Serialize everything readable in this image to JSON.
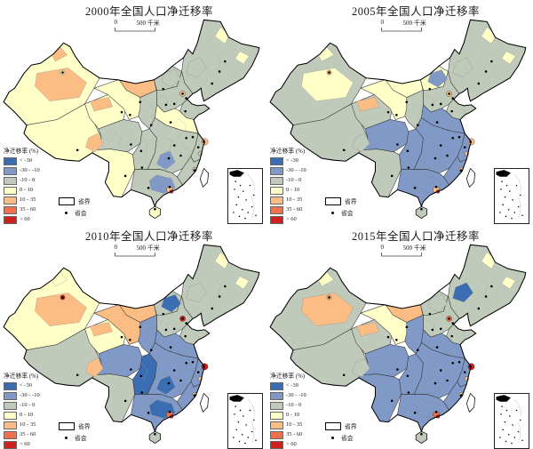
{
  "figure": {
    "background": "#ffffff"
  },
  "legend": {
    "title": "净迁移率 (%)",
    "classes": [
      {
        "label": "< -30",
        "color": "#3B6DB3"
      },
      {
        "label": "-30 - -10",
        "color": "#8099C7"
      },
      {
        "label": "-10 - 0",
        "color": "#C0CABB"
      },
      {
        "label": "0 - 10",
        "color": "#FFFFC8"
      },
      {
        "label": "10 - 35",
        "color": "#FBBD84"
      },
      {
        "label": "35 - 60",
        "color": "#F1714C"
      },
      {
        "label": "> 60",
        "color": "#D11E1F"
      }
    ],
    "province_boundary_label": "省界",
    "capital_label": "省会"
  },
  "scalebar": {
    "start": "0",
    "end": "500 千米"
  },
  "map_style": {
    "coast_color": "#000000",
    "province_line_color": "#3a3a3a",
    "prefecture_line_color": "#9aa0a0",
    "capital_dot_color": "#000000",
    "no_data_fill": "#ffffff"
  },
  "panels": [
    {
      "title": "2000年全国人口净迁移率",
      "regions": {
        "xinjiang": 3,
        "tibet": 3,
        "qinghai": 3,
        "gansu": 3,
        "nmg_west": 4,
        "nmg_mid": 2,
        "northeast": 2,
        "north_china": 2,
        "shandong": 2,
        "huanghuai": 3,
        "shaanxi": 2,
        "sichuan": 2,
        "cq_gz": 2,
        "yunnan": 3,
        "central": 2,
        "jiangnan": 2,
        "fujian": 2,
        "gdgx": 2,
        "xj_center": 4,
        "xj_north": 4,
        "tibet_east": 4,
        "qinghai_north": 4,
        "nmg_mid_patch": 2,
        "nmg_east_patch": 2,
        "ne_patch1": 3,
        "ne_patch2": 3,
        "hunan_patch": 1,
        "gd_blue": 1,
        "hainan": 3,
        "taiwan": -1,
        "beijing_spot": 4,
        "shanghai_spot": 4,
        "pearl_spot": 4,
        "pearl_red": 6,
        "urumqi_spot": 3,
        "fj_coast": 4,
        "zj_coast": 2
      }
    },
    {
      "title": "2005年全国人口净迁移率",
      "regions": {
        "xinjiang": 2,
        "tibet": 2,
        "qinghai": 2,
        "gansu": 3,
        "nmg_west": 3,
        "nmg_mid": 3,
        "northeast": 2,
        "north_china": 2,
        "shandong": 2,
        "huanghuai": 1,
        "shaanxi": 2,
        "sichuan": 1,
        "cq_gz": 1,
        "yunnan": 2,
        "central": 1,
        "jiangnan": 1,
        "fujian": 1,
        "gdgx": 1,
        "xj_center": 3,
        "xj_north": 3,
        "tibet_east": 2,
        "qinghai_north": 4,
        "nmg_mid_patch": 1,
        "nmg_east_patch": 2,
        "ne_patch1": 3,
        "ne_patch2": 3,
        "hunan_patch": 1,
        "gd_blue": 1,
        "hainan": 2,
        "taiwan": -1,
        "beijing_spot": 4,
        "shanghai_spot": 4,
        "pearl_spot": 4,
        "pearl_red": 6,
        "urumqi_spot": 4,
        "fj_coast": 4,
        "zj_coast": 4
      }
    },
    {
      "title": "2010年全国人口净迁移率",
      "regions": {
        "xinjiang": 3,
        "tibet": 2,
        "qinghai": 3,
        "gansu": 4,
        "nmg_west": 4,
        "nmg_mid": 2,
        "northeast": 2,
        "north_china": 2,
        "shandong": 2,
        "huanghuai": 1,
        "shaanxi": 1,
        "sichuan": 1,
        "cq_gz": 0,
        "yunnan": 2,
        "central": 1,
        "jiangnan": 1,
        "fujian": 1,
        "gdgx": 1,
        "xj_center": 4,
        "xj_north": 3,
        "tibet_east": 4,
        "qinghai_north": 4,
        "nmg_mid_patch": 0,
        "nmg_east_patch": 2,
        "ne_patch1": 3,
        "ne_patch2": 3,
        "hunan_patch": 0,
        "gd_blue": 0,
        "hainan": 2,
        "taiwan": -1,
        "beijing_spot": 6,
        "shanghai_spot": 6,
        "pearl_spot": 5,
        "pearl_red": 6,
        "urumqi_spot": 6,
        "fj_coast": 4,
        "zj_coast": 4
      }
    },
    {
      "title": "2015年全国人口净迁移率",
      "regions": {
        "xinjiang": 2,
        "tibet": 2,
        "qinghai": 2,
        "gansu": 3,
        "nmg_west": 4,
        "nmg_mid": 2,
        "northeast": 2,
        "north_china": 2,
        "shandong": 2,
        "huanghuai": 1,
        "shaanxi": 1,
        "sichuan": 1,
        "cq_gz": 1,
        "yunnan": 1,
        "central": 1,
        "jiangnan": 1,
        "fujian": 1,
        "gdgx": 1,
        "xj_center": 4,
        "xj_north": 3,
        "tibet_east": 2,
        "qinghai_north": 4,
        "nmg_mid_patch": 2,
        "nmg_east_patch": 0,
        "ne_patch1": 3,
        "ne_patch2": 3,
        "hunan_patch": 1,
        "gd_blue": 1,
        "hainan": 2,
        "taiwan": -1,
        "beijing_spot": 5,
        "shanghai_spot": 6,
        "pearl_spot": 5,
        "pearl_red": 6,
        "urumqi_spot": 4,
        "fj_coast": 4,
        "zj_coast": 4
      }
    }
  ]
}
